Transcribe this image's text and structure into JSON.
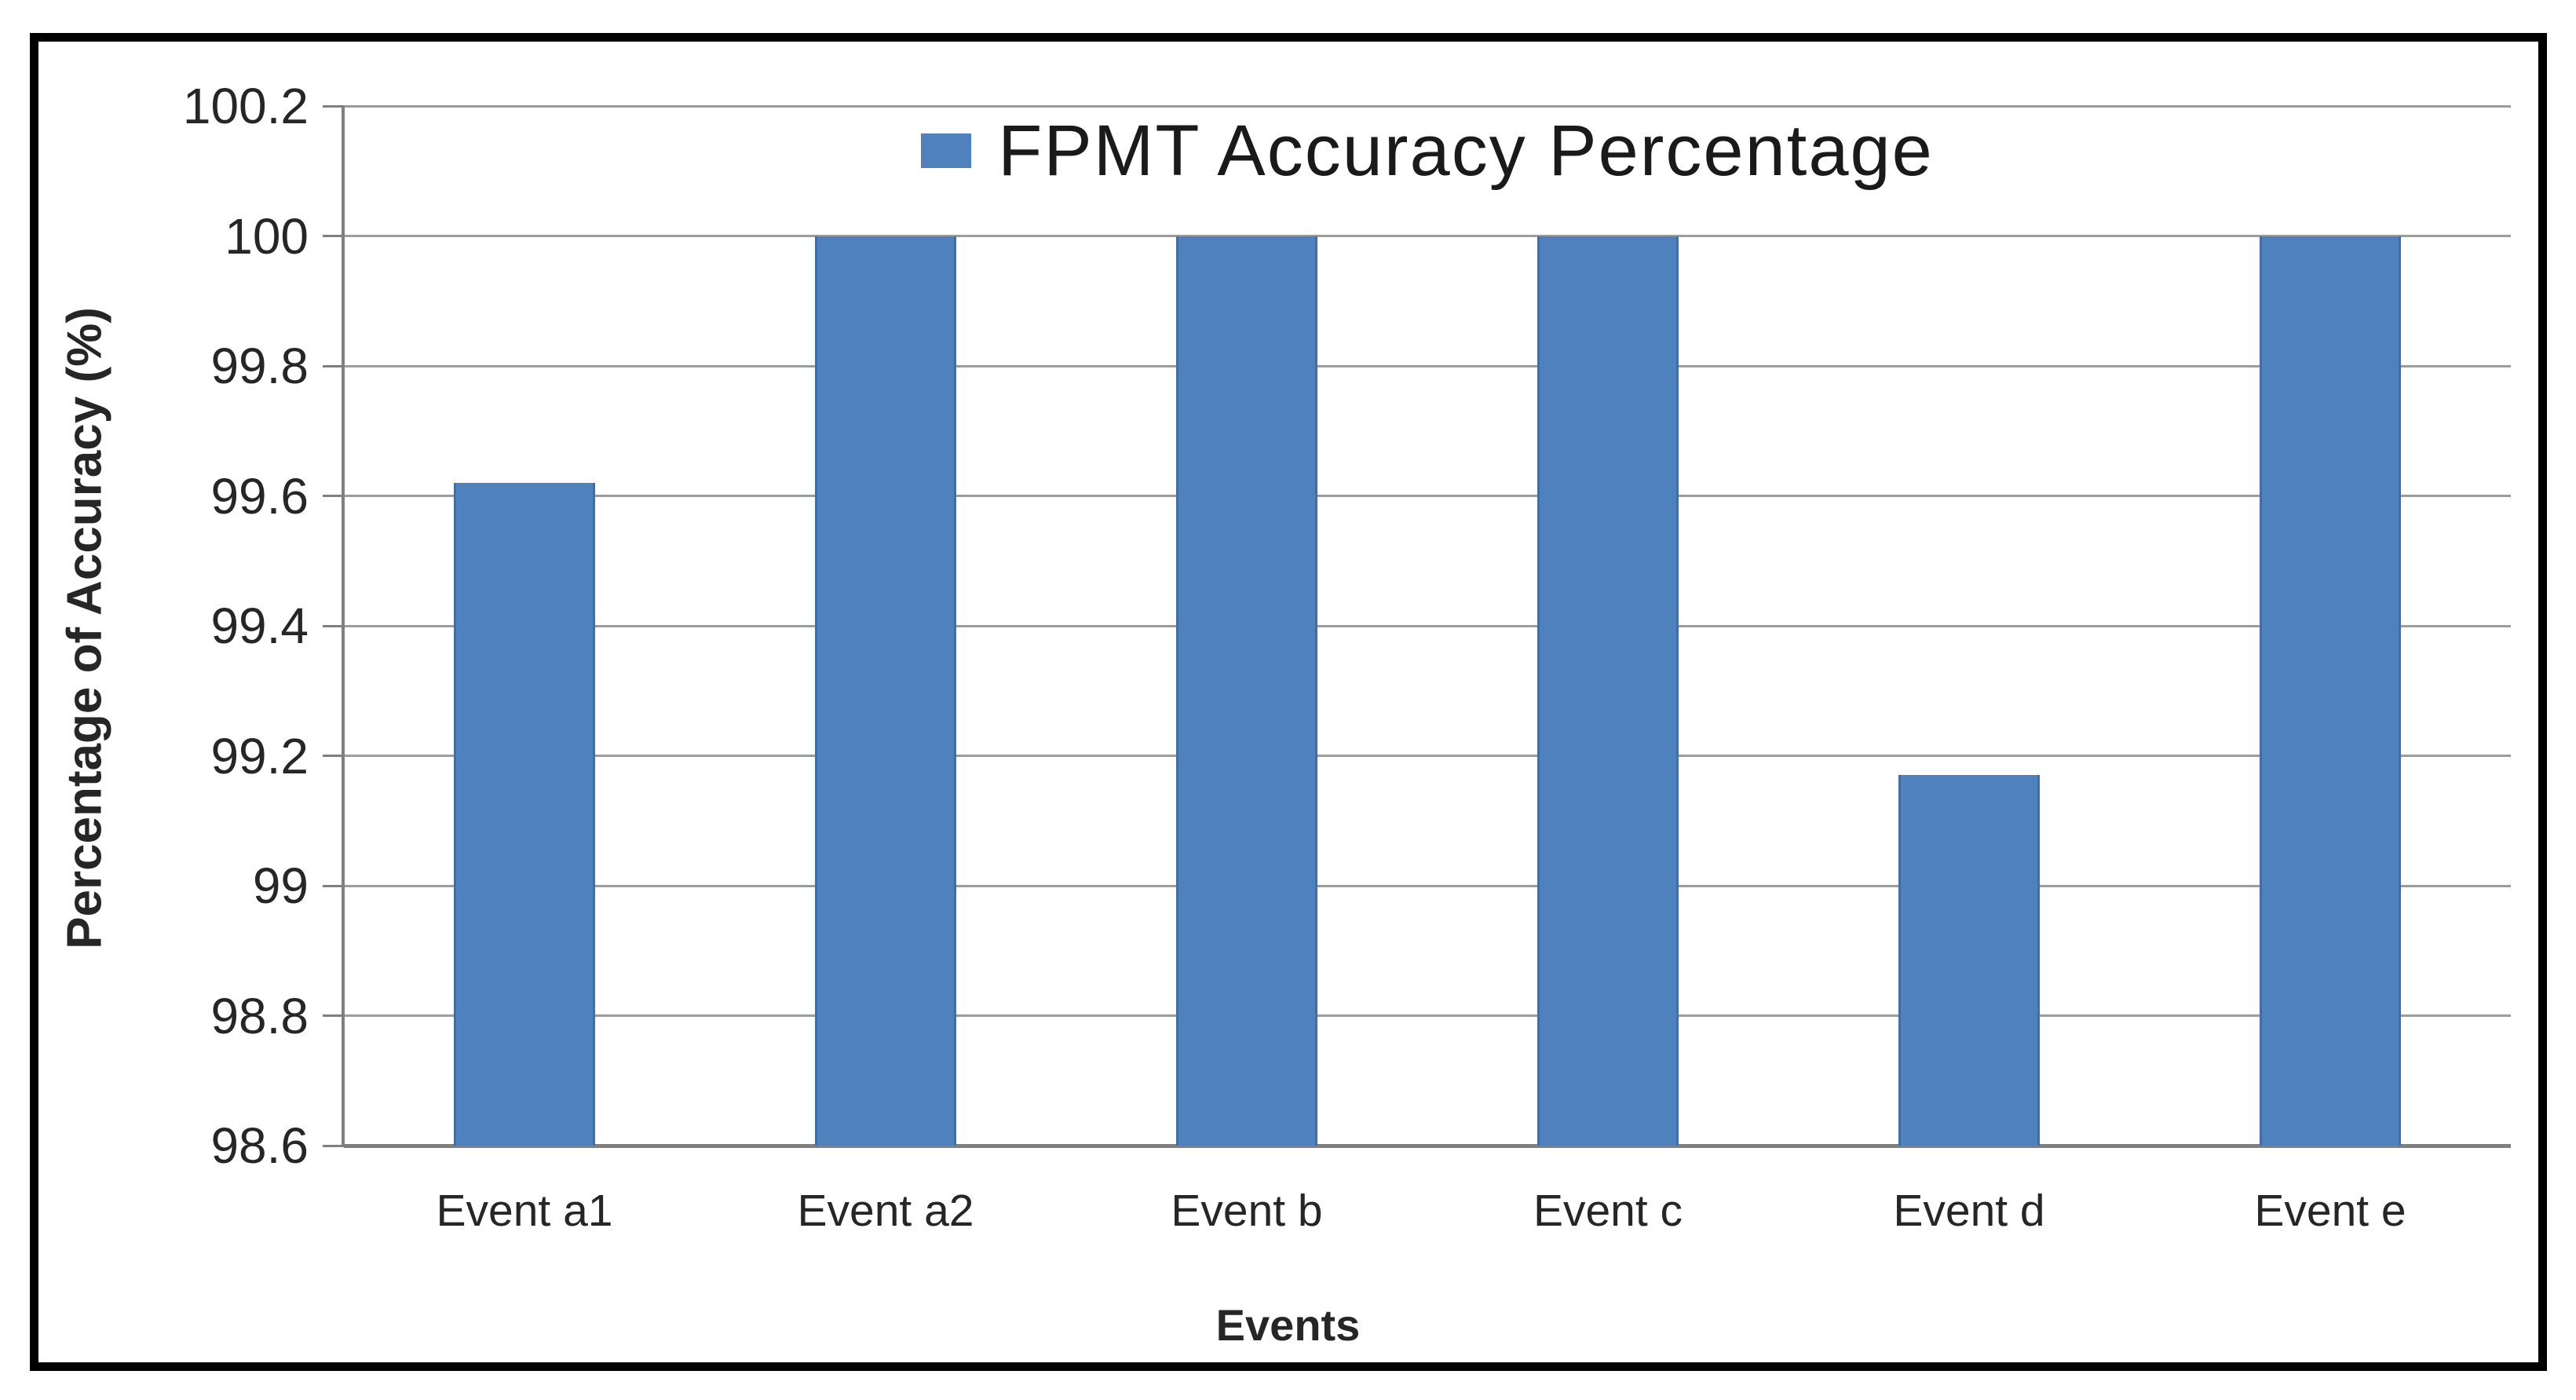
{
  "chart_data": {
    "type": "bar",
    "legend": "FPMT Accuracy Percentage",
    "xlabel": "Events",
    "ylabel": "Percentage of Accuracy (%)",
    "categories": [
      "Event a1",
      "Event a2",
      "Event b",
      "Event c",
      "Event d",
      "Event e"
    ],
    "values": [
      99.62,
      100,
      100,
      100,
      99.17,
      100
    ],
    "yticks": [
      "100.2",
      "100",
      "99.8",
      "99.6",
      "99.4",
      "99.2",
      "99",
      "98.8",
      "98.6"
    ],
    "ylim": [
      98.6,
      100.2
    ],
    "grid": "horizontal gridlines on",
    "legend_position": "top-center",
    "bar_color": "#4F81BD",
    "bar_edge_color": "#3F6FA8",
    "gridline_color": "#9C9C9C",
    "axis_color": "#7F7F7F",
    "text_color": "#262626",
    "frame_color": "#000000"
  }
}
